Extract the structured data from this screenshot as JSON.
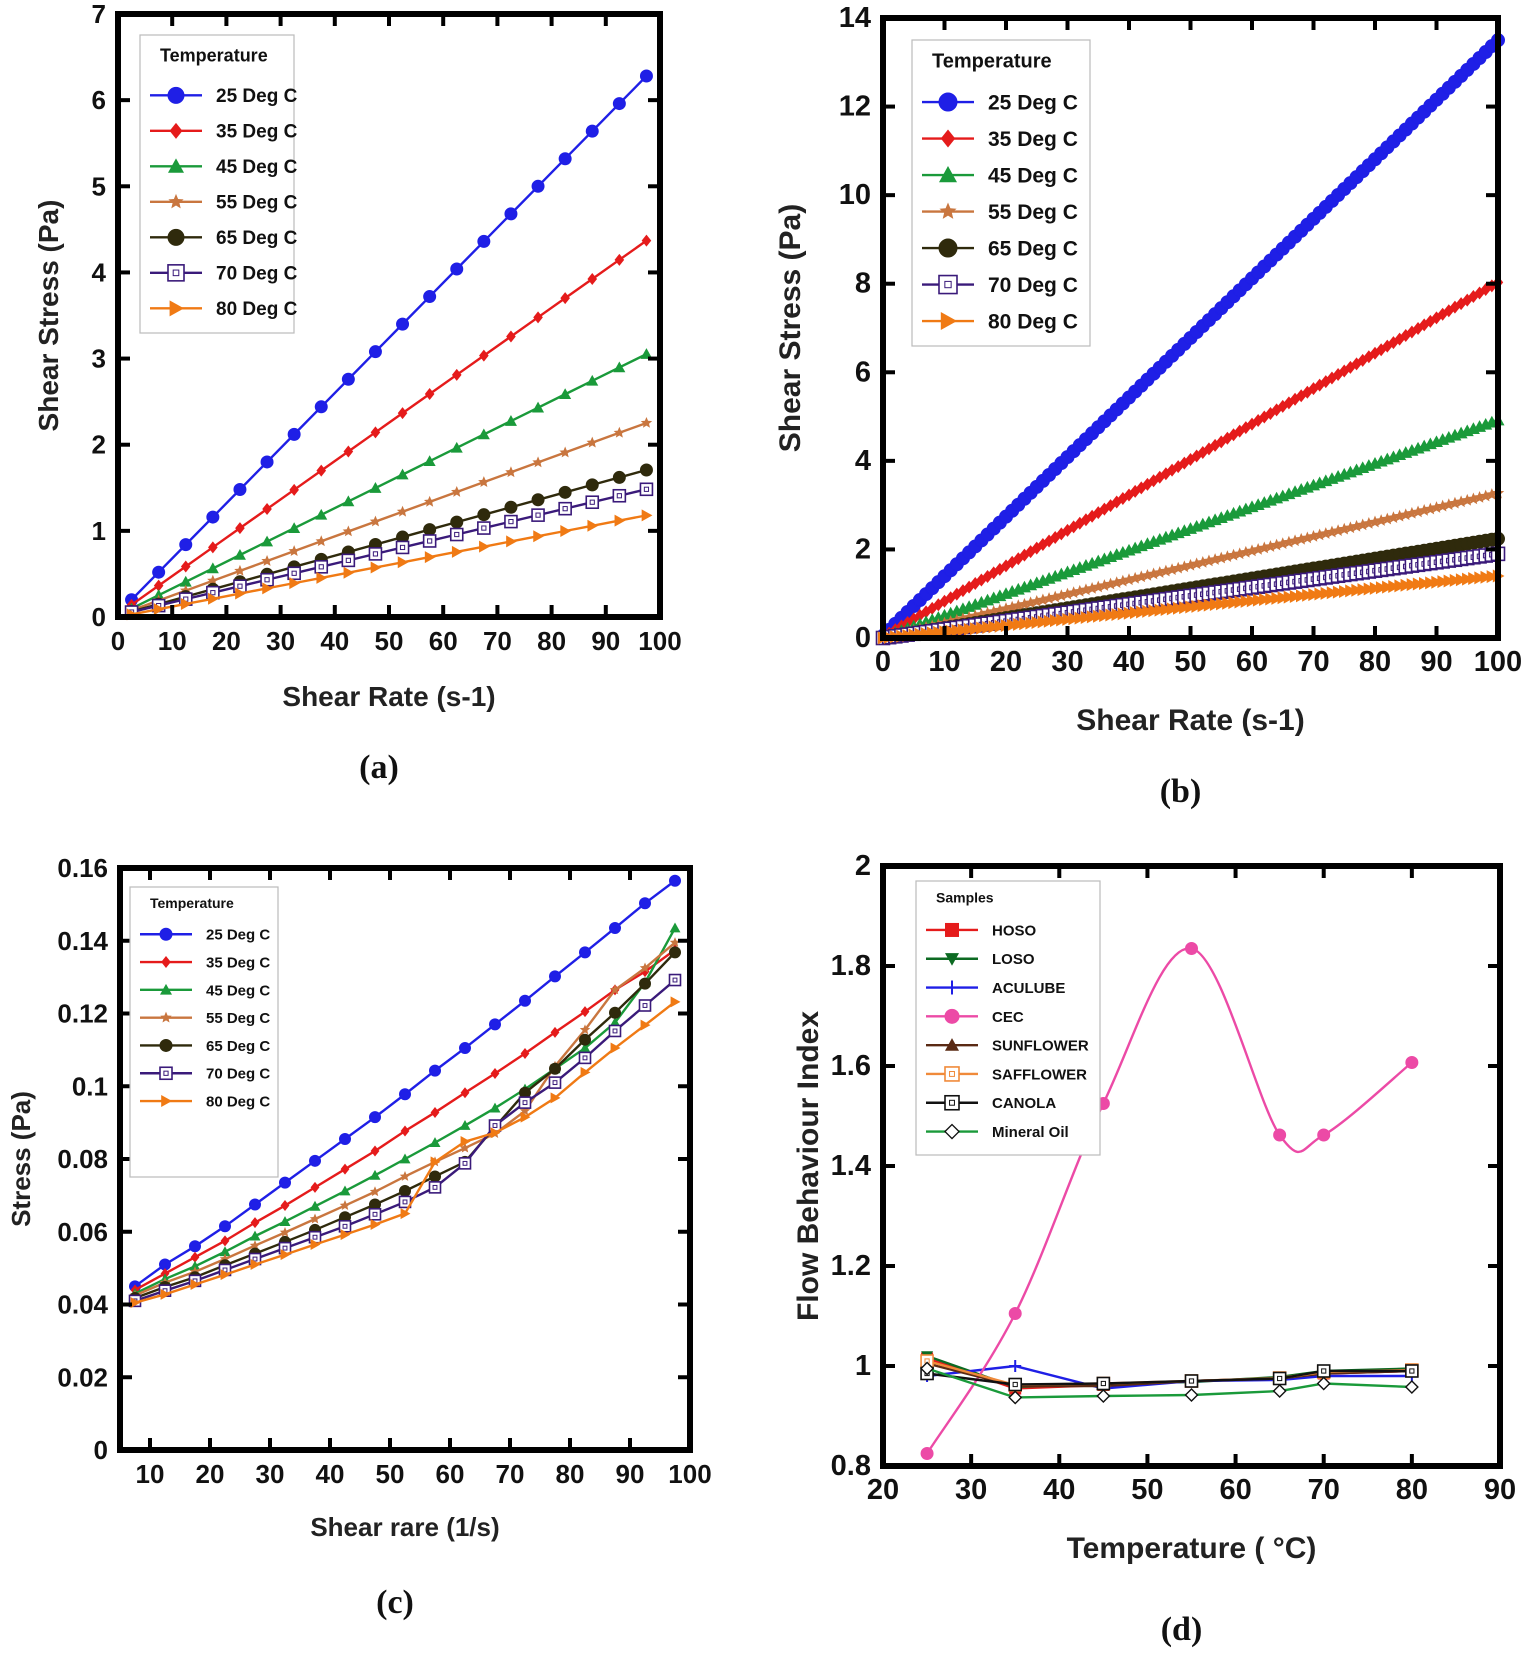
{
  "colors": {
    "25": "#1f1fe6",
    "35": "#e51b1b",
    "45": "#1a9a3a",
    "55": "#c9763f",
    "65": "#2f2a0c",
    "70": "#3a1a7a",
    "80": "#f07a14",
    "HOSO": "#e51b1b",
    "LOSO": "#0c6a22",
    "ACULUBE": "#1f1fe6",
    "CEC": "#ec4aa6",
    "SUNFLOWER": "#5a2a14",
    "SAFFLOWER": "#f08a3a",
    "CANOLA": "#111111",
    "Mineral Oil": "#1a9a3a"
  },
  "chart_data": [
    {
      "panel": "(a)",
      "type": "line",
      "xlabel": "Shear Rate (s-1)",
      "ylabel": "Shear Stress (Pa)",
      "xlim": [
        0,
        100
      ],
      "ylim": [
        0,
        7
      ],
      "xticks": [
        0,
        10,
        20,
        30,
        40,
        50,
        60,
        70,
        80,
        90,
        100
      ],
      "yticks": [
        0,
        1,
        2,
        3,
        4,
        5,
        6,
        7
      ],
      "legend_title": "Temperature",
      "legend_position": "top-left",
      "x": [
        2.5,
        7.5,
        12.5,
        17.5,
        22.5,
        27.5,
        32.5,
        37.5,
        42.5,
        47.5,
        52.5,
        57.5,
        62.5,
        67.5,
        72.5,
        77.5,
        82.5,
        87.5,
        92.5,
        97.5
      ],
      "series": [
        {
          "name": "25 Deg C",
          "key": "25",
          "marker": "circle",
          "slope": 0.064,
          "intercept": 0.04
        },
        {
          "name": "35 Deg C",
          "key": "35",
          "marker": "diamond",
          "slope": 0.0445,
          "intercept": 0.03
        },
        {
          "name": "45 Deg C",
          "key": "45",
          "marker": "triangle",
          "slope": 0.0311,
          "intercept": 0.02
        },
        {
          "name": "55 Deg C",
          "key": "55",
          "marker": "star",
          "slope": 0.0229,
          "intercept": 0.02
        },
        {
          "name": "65 Deg C",
          "key": "65",
          "marker": "circle",
          "slope": 0.0173,
          "intercept": 0.02
        },
        {
          "name": "70 Deg C",
          "key": "70",
          "marker": "square-open",
          "slope": 0.015,
          "intercept": 0.02
        },
        {
          "name": "80 Deg C",
          "key": "80",
          "marker": "triangle-right",
          "slope": 0.0121,
          "intercept": 0.0
        }
      ]
    },
    {
      "panel": "(b)",
      "type": "line",
      "xlabel": "Shear Rate (s-1)",
      "ylabel": "Shear Stress (Pa)",
      "xlim": [
        0,
        100
      ],
      "ylim": [
        0,
        14
      ],
      "xticks": [
        0,
        10,
        20,
        30,
        40,
        50,
        60,
        70,
        80,
        90,
        100
      ],
      "yticks": [
        0,
        2,
        4,
        6,
        8,
        10,
        12,
        14
      ],
      "legend_title": "Temperature",
      "legend_position": "top-left",
      "x_start": 0,
      "x_end": 100,
      "x_step": 1,
      "series": [
        {
          "name": "25 Deg C",
          "key": "25",
          "marker": "circle",
          "slope": 0.1345,
          "intercept": 0.05
        },
        {
          "name": "35 Deg C",
          "key": "35",
          "marker": "diamond",
          "slope": 0.08,
          "intercept": 0.03
        },
        {
          "name": "45 Deg C",
          "key": "45",
          "marker": "triangle",
          "slope": 0.049,
          "intercept": 0.02
        },
        {
          "name": "55 Deg C",
          "key": "55",
          "marker": "star",
          "slope": 0.0326,
          "intercept": 0.01
        },
        {
          "name": "65 Deg C",
          "key": "65",
          "marker": "circle",
          "slope": 0.0224,
          "intercept": 0.0
        },
        {
          "name": "70 Deg C",
          "key": "70",
          "marker": "square-open",
          "slope": 0.019,
          "intercept": 0.0
        },
        {
          "name": "80 Deg C",
          "key": "80",
          "marker": "triangle-right",
          "slope": 0.014,
          "intercept": 0.0
        }
      ]
    },
    {
      "panel": "(c)",
      "type": "line",
      "xlabel": "Shear rare (1/s)",
      "ylabel": "Stress (Pa)",
      "xlim": [
        5,
        100
      ],
      "ylim": [
        0,
        0.16
      ],
      "xticks": [
        10,
        20,
        30,
        40,
        50,
        60,
        70,
        80,
        90,
        100
      ],
      "xtick_labels": [
        "10",
        "20",
        "30",
        "40",
        "50",
        "60",
        "70",
        "80",
        "90",
        "100"
      ],
      "yticks": [
        0,
        0.02,
        0.04,
        0.06,
        0.08,
        0.1,
        0.12,
        0.14,
        0.16
      ],
      "ytick_labels": [
        "0",
        "0.02",
        "0.04",
        "0.06",
        "0.08",
        "0.1",
        "0.12",
        "0.14",
        "0.16"
      ],
      "legend_title": "Temperature",
      "legend_position": "top-left",
      "x": [
        7.5,
        12.5,
        17.5,
        22.5,
        27.5,
        32.5,
        37.5,
        42.5,
        47.5,
        52.5,
        57.5,
        62.5,
        67.5,
        72.5,
        77.5,
        82.5,
        87.5,
        92.5,
        97.5
      ],
      "series": [
        {
          "name": "25 Deg C",
          "key": "25",
          "marker": "circle",
          "values": [
            0.045,
            0.051,
            0.056,
            0.0615,
            0.0675,
            0.0735,
            0.0795,
            0.0855,
            0.0915,
            0.0978,
            0.1043,
            0.1105,
            0.117,
            0.1235,
            0.1302,
            0.1368,
            0.1435,
            0.1503,
            0.1565
          ]
        },
        {
          "name": "35 Deg C",
          "key": "35",
          "marker": "diamond",
          "values": [
            0.044,
            0.0485,
            0.053,
            0.0575,
            0.0625,
            0.0672,
            0.0722,
            0.0772,
            0.0822,
            0.0877,
            0.0928,
            0.0982,
            0.1035,
            0.109,
            0.1148,
            0.1205,
            0.1265,
            0.1315,
            0.1375
          ]
        },
        {
          "name": "45 Deg C",
          "key": "45",
          "marker": "triangle",
          "values": [
            0.043,
            0.047,
            0.0505,
            0.0545,
            0.0588,
            0.0628,
            0.067,
            0.0712,
            0.0755,
            0.08,
            0.0845,
            0.0892,
            0.094,
            0.0992,
            0.1048,
            0.1105,
            0.1175,
            0.1285,
            0.1435
          ]
        },
        {
          "name": "55 Deg C",
          "key": "55",
          "marker": "star",
          "values": [
            0.0425,
            0.046,
            0.049,
            0.0525,
            0.0562,
            0.0598,
            0.0635,
            0.0672,
            0.071,
            0.0752,
            0.0792,
            0.083,
            0.087,
            0.0932,
            0.1055,
            0.1155,
            0.1265,
            0.1325,
            0.1395
          ]
        },
        {
          "name": "65 Deg C",
          "key": "65",
          "marker": "circle",
          "values": [
            0.0418,
            0.0448,
            0.0475,
            0.0508,
            0.054,
            0.0572,
            0.0605,
            0.064,
            0.0675,
            0.0712,
            0.0752,
            0.0792,
            0.0888,
            0.0982,
            0.1048,
            0.1128,
            0.1202,
            0.1282,
            0.1368
          ]
        },
        {
          "name": "70 Deg C",
          "key": "70",
          "marker": "square-open",
          "values": [
            0.041,
            0.0438,
            0.0465,
            0.0495,
            0.0525,
            0.0555,
            0.0585,
            0.0615,
            0.0648,
            0.0682,
            0.0722,
            0.0788,
            0.0892,
            0.0955,
            0.101,
            0.1078,
            0.1152,
            0.1222,
            0.1292
          ]
        },
        {
          "name": "80 Deg C",
          "key": "80",
          "marker": "triangle-right",
          "values": [
            0.0405,
            0.0428,
            0.0455,
            0.0482,
            0.051,
            0.0537,
            0.0565,
            0.0592,
            0.062,
            0.065,
            0.0792,
            0.0848,
            0.0872,
            0.0915,
            0.0968,
            0.1038,
            0.1105,
            0.1168,
            0.1232
          ]
        }
      ]
    },
    {
      "panel": "(d)",
      "type": "line",
      "xlabel": "Temperature ( °C)",
      "ylabel": "Flow Behaviour Index",
      "xlim": [
        20,
        90
      ],
      "ylim": [
        0.8,
        2.0
      ],
      "xticks": [
        20,
        30,
        40,
        50,
        60,
        70,
        80,
        90
      ],
      "yticks": [
        0.8,
        1.0,
        1.2,
        1.4,
        1.6,
        1.8,
        2.0
      ],
      "ytick_labels": [
        "0.8",
        "1",
        "1.2",
        "1.4",
        "1.6",
        "1.8",
        "2"
      ],
      "legend_title": "Samples",
      "legend_position": "top-left",
      "x": [
        25,
        35,
        45,
        55,
        65,
        70,
        80
      ],
      "series": [
        {
          "name": "HOSO",
          "key": "HOSO",
          "marker": "square",
          "values": [
            1.015,
            0.955,
            0.962,
            0.97,
            0.975,
            0.985,
            0.99
          ]
        },
        {
          "name": "LOSO",
          "key": "LOSO",
          "marker": "triangle-down",
          "values": [
            1.02,
            0.958,
            0.965,
            0.968,
            0.978,
            0.99,
            0.995
          ]
        },
        {
          "name": "ACULUBE",
          "key": "ACULUBE",
          "marker": "plus",
          "values": [
            0.98,
            1.0,
            0.955,
            0.97,
            0.972,
            0.98,
            0.98
          ]
        },
        {
          "name": "CEC",
          "key": "CEC",
          "marker": "circle",
          "values": [
            0.825,
            1.105,
            1.525,
            1.835,
            1.462,
            1.462,
            1.607
          ]
        },
        {
          "name": "SUNFLOWER",
          "key": "SUNFLOWER",
          "marker": "triangle",
          "values": [
            1.005,
            0.96,
            0.96,
            0.97,
            0.975,
            0.985,
            0.99
          ]
        },
        {
          "name": "SAFFLOWER",
          "key": "SAFFLOWER",
          "marker": "square-open",
          "values": [
            1.01,
            0.962,
            0.965,
            0.97,
            0.976,
            0.988,
            0.992
          ]
        },
        {
          "name": "CANOLA",
          "key": "CANOLA",
          "marker": "square-open",
          "values": [
            0.985,
            0.963,
            0.965,
            0.97,
            0.975,
            0.99,
            0.99
          ]
        },
        {
          "name": "Mineral Oil",
          "key": "Mineral Oil",
          "marker": "diamond-open",
          "values": [
            0.995,
            0.937,
            0.94,
            0.942,
            0.95,
            0.965,
            0.958
          ]
        }
      ]
    }
  ]
}
